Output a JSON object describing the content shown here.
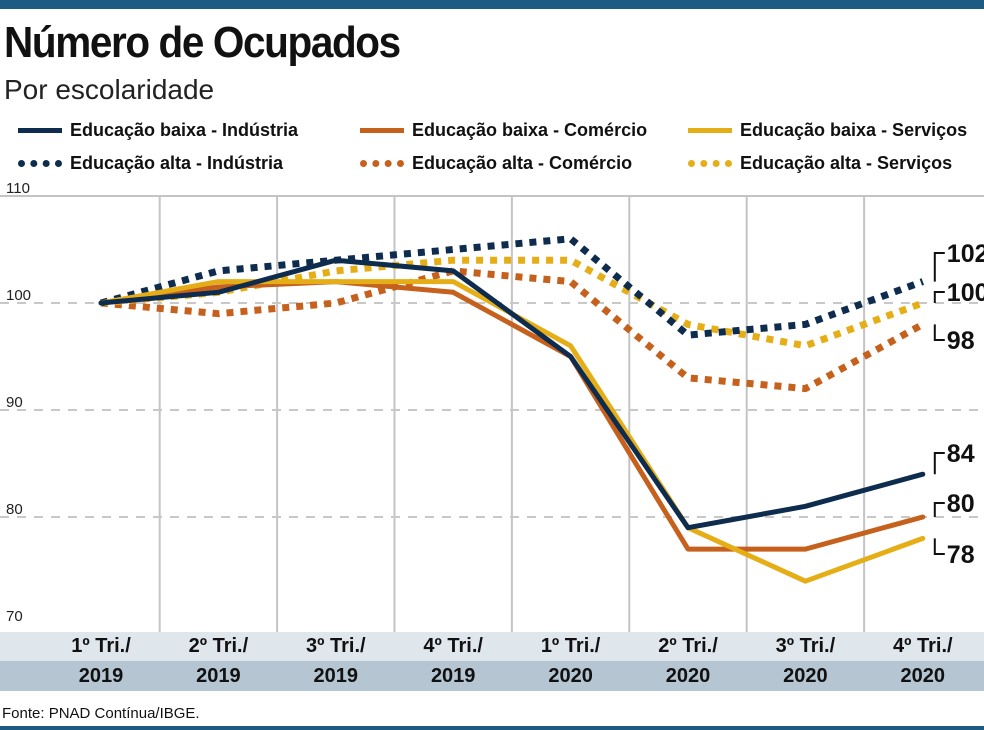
{
  "title": "Número de Ocupados",
  "subtitle": "Por escolaridade",
  "source": "Fonte: PNAD Contínua/IBGE.",
  "colors": {
    "industria": "#0e2c4e",
    "comercio": "#c6611d",
    "servicos": "#e6ae16",
    "frame": "#1d5b82"
  },
  "chart_data": {
    "type": "line",
    "title": "Número de Ocupados",
    "subtitle": "Por escolaridade",
    "categories_line1": [
      "1º Tri./",
      "2º Tri./",
      "3º Tri./",
      "4º Tri./",
      "1º Tri./",
      "2º Tri./",
      "3º Tri./",
      "4º Tri./"
    ],
    "categories_line2": [
      "2019",
      "2019",
      "2019",
      "2019",
      "2020",
      "2020",
      "2020",
      "2020"
    ],
    "ylim": [
      70,
      110
    ],
    "yticks": [
      "70",
      "80",
      "90",
      "100",
      "110"
    ],
    "grid": true,
    "legend_position": "top",
    "series": [
      {
        "name": "Educação baixa - Indústria",
        "style": "solid",
        "color": "#0e2c4e",
        "values": [
          100,
          101,
          104,
          103,
          95,
          79,
          81,
          84
        ],
        "end_label": "84"
      },
      {
        "name": "Educação baixa - Comércio",
        "style": "solid",
        "color": "#c6611d",
        "values": [
          100,
          101.5,
          102,
          101,
          95,
          77,
          77,
          80
        ],
        "end_label": "80"
      },
      {
        "name": "Educação baixa - Serviços",
        "style": "solid",
        "color": "#e6ae16",
        "values": [
          100,
          102,
          102,
          102,
          96,
          79,
          74,
          78
        ],
        "end_label": "78"
      },
      {
        "name": "Educação alta - Indústria",
        "style": "dotted",
        "color": "#0e2c4e",
        "values": [
          100,
          103,
          104,
          105,
          106,
          97,
          98,
          102
        ],
        "end_label": "102"
      },
      {
        "name": "Educação alta - Comércio",
        "style": "dotted",
        "color": "#c6611d",
        "values": [
          100,
          99,
          100,
          103,
          102,
          93,
          92,
          98
        ],
        "end_label": "98"
      },
      {
        "name": "Educação alta - Serviços",
        "style": "dotted",
        "color": "#e6ae16",
        "values": [
          100,
          101,
          103,
          104,
          104,
          98,
          96,
          100
        ],
        "end_label": "100"
      }
    ]
  }
}
